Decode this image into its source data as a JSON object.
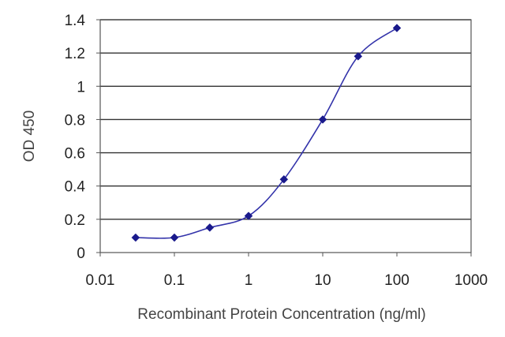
{
  "chart_data": {
    "type": "line",
    "title": "",
    "xlabel": "Recombinant Protein Concentration (ng/ml)",
    "ylabel": "OD 450",
    "x_scale": "log",
    "xlim": [
      0.01,
      1000
    ],
    "ylim": [
      0,
      1.4
    ],
    "x_ticks": [
      "0.01",
      "0.1",
      "1",
      "10",
      "100",
      "1000"
    ],
    "y_ticks": [
      "0",
      "0.2",
      "0.4",
      "0.6",
      "0.8",
      "1",
      "1.2",
      "1.4"
    ],
    "grid": "horizontal",
    "legend": "none",
    "series": [
      {
        "x": [
          0.03,
          0.1,
          0.3,
          1,
          3,
          10,
          30,
          100
        ],
        "y": [
          0.09,
          0.09,
          0.15,
          0.22,
          0.44,
          0.8,
          1.18,
          1.35
        ]
      }
    ],
    "colors": {
      "line": "#3333aa",
      "marker": "#1a1a8c",
      "grid": "#333333",
      "frame": "#555555"
    }
  }
}
